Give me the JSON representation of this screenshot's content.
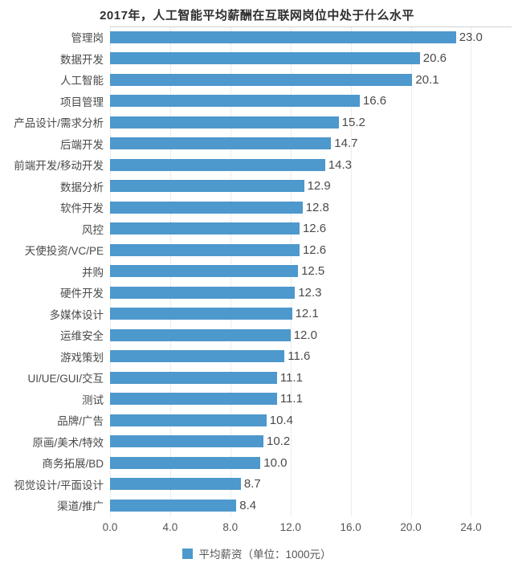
{
  "chart_data": {
    "type": "bar",
    "orientation": "horizontal",
    "title": "2017年，人工智能平均薪酬在互联网岗位中处于什么水平",
    "categories": [
      "管理岗",
      "数据开发",
      "人工智能",
      "项目管理",
      "产品设计/需求分析",
      "后端开发",
      "前端开发/移动开发",
      "数据分析",
      "软件开发",
      "风控",
      "天使投资/VC/PE",
      "并购",
      "硬件开发",
      "多媒体设计",
      "运维安全",
      "游戏策划",
      "UI/UE/GUI/交互",
      "测试",
      "品牌/广告",
      "原画/美术/特效",
      "商务拓展/BD",
      "视觉设计/平面设计",
      "渠道/推广"
    ],
    "values": [
      23.0,
      20.6,
      20.1,
      16.6,
      15.2,
      14.7,
      14.3,
      12.9,
      12.8,
      12.6,
      12.6,
      12.5,
      12.3,
      12.1,
      12.0,
      11.6,
      11.1,
      11.1,
      10.4,
      10.2,
      10.0,
      8.7,
      8.4
    ],
    "xlabel": "",
    "ylabel": "",
    "xtick_values": [
      0,
      4,
      8,
      12,
      16,
      20,
      24
    ],
    "xtick_labels": [
      "0.0",
      "4.0",
      "8.0",
      "12.0",
      "16.0",
      "20.0",
      "24.0"
    ],
    "xlim": [
      0,
      26.7
    ],
    "grid": true,
    "legend_position": "bottom",
    "legend": "平均薪资（单位：1000元）",
    "bar_color": "#4d98cc",
    "value_decimals": 1
  }
}
